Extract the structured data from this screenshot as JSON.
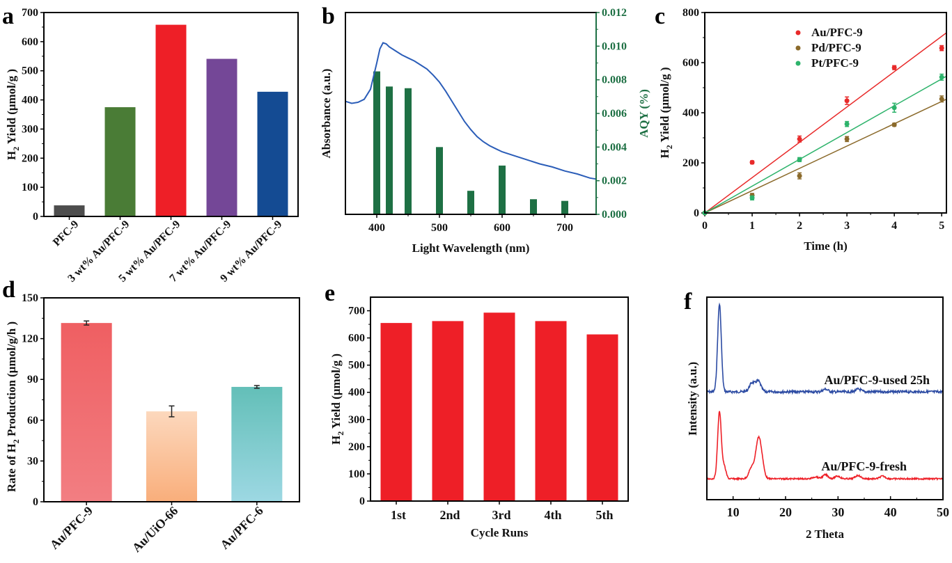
{
  "chart_data": [
    {
      "panel": "a",
      "type": "bar",
      "categories": [
        "PFC-9",
        "3 wt% Au/PFC-9",
        "5 wt% Au/PFC-9",
        "7 wt% Au/PFC-9",
        "9 wt% Au/PFC-9"
      ],
      "values": [
        38,
        375,
        658,
        541,
        428
      ],
      "colors": [
        "#4d4d4d",
        "#4a7c36",
        "#ee1f27",
        "#744797",
        "#144b93"
      ],
      "xlabel": "",
      "ylabel": "H2 Yield (μmol/g )",
      "ylim": [
        0,
        700
      ],
      "yticks": [
        0,
        100,
        200,
        300,
        400,
        500,
        600,
        700
      ]
    },
    {
      "panel": "b",
      "type": "bar+line",
      "xlabel": "Light Wavelength (nm)",
      "ylabel": "Absorbance (a.u.)",
      "ylabel_right": "AQY (%)",
      "xlim": [
        350,
        750
      ],
      "xticks": [
        400,
        500,
        600,
        700
      ],
      "ylim_right": [
        0,
        0.012
      ],
      "yticks_right": [
        "0.000",
        "0.002",
        "0.004",
        "0.006",
        "0.008",
        "0.010",
        "0.012"
      ],
      "bars": {
        "name": "AQY",
        "x": [
          400,
          420,
          450,
          500,
          550,
          600,
          650,
          700
        ],
        "values": [
          0.0085,
          0.0076,
          0.0075,
          0.004,
          0.0014,
          0.0029,
          0.0009,
          0.0008
        ],
        "color": "#1e7044"
      },
      "line": {
        "name": "Absorbance",
        "color": "#2b5db8",
        "x": [
          350,
          360,
          370,
          380,
          390,
          400,
          405,
          410,
          415,
          420,
          430,
          440,
          450,
          460,
          470,
          480,
          490,
          500,
          510,
          520,
          530,
          540,
          550,
          560,
          570,
          580,
          590,
          600,
          620,
          640,
          660,
          680,
          700,
          720,
          740,
          750
        ],
        "y": [
          0.56,
          0.55,
          0.555,
          0.57,
          0.62,
          0.75,
          0.82,
          0.85,
          0.845,
          0.83,
          0.81,
          0.79,
          0.775,
          0.76,
          0.74,
          0.72,
          0.69,
          0.655,
          0.61,
          0.56,
          0.51,
          0.46,
          0.42,
          0.385,
          0.36,
          0.34,
          0.325,
          0.31,
          0.29,
          0.27,
          0.25,
          0.235,
          0.215,
          0.2,
          0.18,
          0.175
        ]
      }
    },
    {
      "panel": "c",
      "type": "scatter",
      "xlabel": "Time (h)",
      "ylabel": "H2 Yield (μmol/g )",
      "xlim": [
        0,
        5.1
      ],
      "xticks": [
        0,
        1,
        2,
        3,
        4,
        5
      ],
      "ylim": [
        0,
        800
      ],
      "yticks": [
        0,
        200,
        400,
        600,
        800
      ],
      "legend_position": "top-center",
      "series": [
        {
          "name": "Au/PFC-9",
          "color": "#e82a2a",
          "x": [
            0,
            1,
            2,
            3,
            4,
            5
          ],
          "values": [
            0,
            202,
            295,
            448,
            580,
            658
          ],
          "errors": [
            0,
            6,
            12,
            15,
            8,
            10
          ],
          "fit_slope": 141
        },
        {
          "name": "Pd/PFC-9",
          "color": "#8b6a2b",
          "x": [
            0,
            1,
            2,
            3,
            4,
            5
          ],
          "values": [
            0,
            70,
            148,
            295,
            352,
            455
          ],
          "errors": [
            0,
            8,
            12,
            10,
            6,
            12
          ],
          "fit_slope": 89
        },
        {
          "name": "Pt/PFC-9",
          "color": "#2db36b",
          "x": [
            0,
            1,
            2,
            3,
            4,
            5
          ],
          "values": [
            0,
            60,
            213,
            355,
            420,
            542
          ],
          "errors": [
            0,
            8,
            8,
            10,
            18,
            12
          ],
          "fit_slope": 107
        }
      ]
    },
    {
      "panel": "d",
      "type": "bar",
      "categories": [
        "Au/PFC-9",
        "Au/UiO-66",
        "Au/PFC-6"
      ],
      "values": [
        131.5,
        66.5,
        84.5
      ],
      "errors": [
        1.5,
        4.0,
        1.0
      ],
      "gradients": [
        [
          "#ef5f62",
          "#f27e82"
        ],
        [
          "#fcd8bd",
          "#f9ae7b"
        ],
        [
          "#63bfb8",
          "#9dd8e3"
        ]
      ],
      "xlabel": "",
      "ylabel": "Rate of H2 Production (μmol/g/h )",
      "ylim": [
        0,
        150
      ],
      "yticks": [
        0,
        30,
        60,
        90,
        120,
        150
      ]
    },
    {
      "panel": "e",
      "type": "bar",
      "categories": [
        "1st",
        "2nd",
        "3rd",
        "4th",
        "5th"
      ],
      "values": [
        655,
        662,
        693,
        662,
        613
      ],
      "color": "#ee1f27",
      "xlabel": "Cycle Runs",
      "ylabel": "H2 Yield (μmol/g )",
      "ylim": [
        0,
        750
      ],
      "yticks": [
        0,
        100,
        200,
        300,
        400,
        500,
        600,
        700
      ]
    },
    {
      "panel": "f",
      "type": "line",
      "xlabel": "2 Theta",
      "ylabel": "Intensity (a.u.)",
      "xlim": [
        5,
        50
      ],
      "xticks": [
        10,
        20,
        30,
        40,
        50
      ],
      "series": [
        {
          "name": "Au/PFC-9-used 25h",
          "color": "#2c4ba3",
          "peaks": [
            [
              7.4,
              1.0
            ],
            [
              13.6,
              0.1
            ],
            [
              14.8,
              0.12
            ],
            [
              27.6,
              0.03
            ],
            [
              33.9,
              0.03
            ]
          ]
        },
        {
          "name": "Au/PFC-9-fresh",
          "color": "#ee1f27",
          "peaks": [
            [
              7.4,
              1.0
            ],
            [
              8.3,
              0.18
            ],
            [
              13.5,
              0.16
            ],
            [
              14.7,
              0.44
            ],
            [
              15.3,
              0.3
            ],
            [
              25.7,
              0.03
            ],
            [
              27.6,
              0.06
            ],
            [
              29.9,
              0.04
            ],
            [
              33.8,
              0.05
            ],
            [
              38.5,
              0.04
            ]
          ]
        }
      ]
    }
  ],
  "panel_labels": [
    "a",
    "b",
    "c",
    "d",
    "e",
    "f"
  ]
}
